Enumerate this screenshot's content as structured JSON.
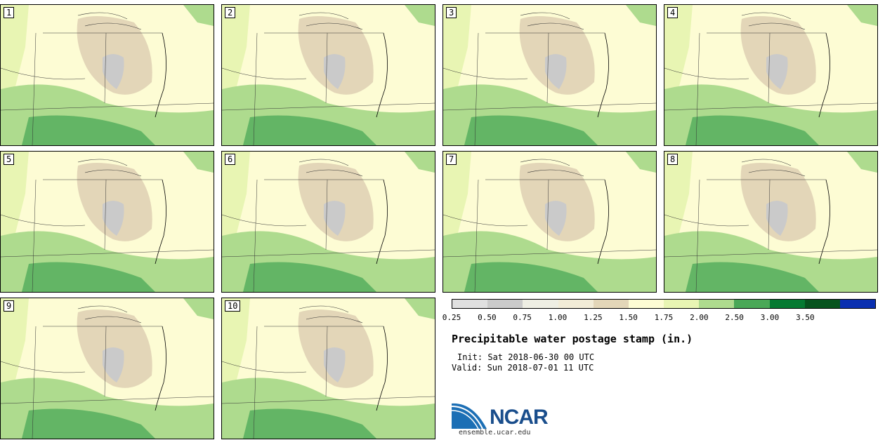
{
  "panels": [
    {
      "label": "1"
    },
    {
      "label": "2"
    },
    {
      "label": "3"
    },
    {
      "label": "4"
    },
    {
      "label": "5"
    },
    {
      "label": "6"
    },
    {
      "label": "7"
    },
    {
      "label": "8"
    },
    {
      "label": "9"
    },
    {
      "label": "10"
    }
  ],
  "colorbar": {
    "colors": [
      "#e0e0e0",
      "#cacaca",
      "#eeeee3",
      "#f2ecd7",
      "#e3d6b8",
      "#fdfcd4",
      "#e8f5b3",
      "#aedb8e",
      "#4aa857",
      "#057a32",
      "#06531e",
      "#0a2fb0"
    ],
    "ticks": [
      "0.25",
      "0.50",
      "0.75",
      "1.00",
      "1.25",
      "1.50",
      "1.75",
      "2.00",
      "2.50",
      "3.00",
      "3.50"
    ]
  },
  "title": "Precipitable water postage stamp (in.)",
  "init": "Init: Sat 2018-06-30 00 UTC",
  "valid": "Valid: Sun 2018-07-01 11 UTC",
  "logo_text": "NCAR",
  "site": "ensemble.ucar.edu"
}
